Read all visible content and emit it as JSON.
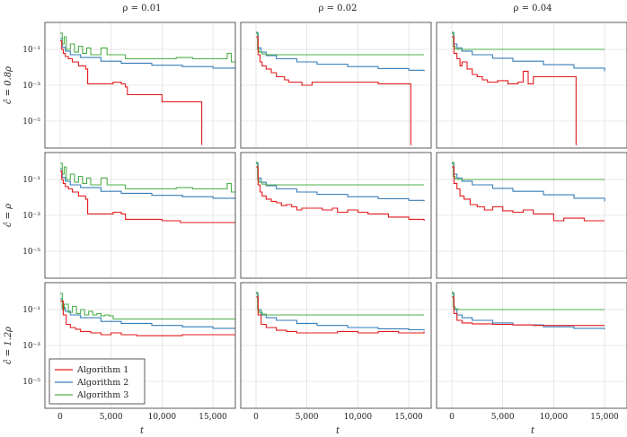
{
  "figure": {
    "column_titles": [
      "ρ = 0.01",
      "ρ = 0.02",
      "ρ = 0.04"
    ],
    "row_labels": [
      "ĉ = 0.8ρ",
      "ĉ = ρ",
      "ĉ = 1.2ρ"
    ],
    "xlabel": "t",
    "x_tick_labels": [
      "0",
      "5,000",
      "10,000",
      "15,000"
    ],
    "y_tick_labels": [
      "10⁻¹",
      "10⁻³",
      "10⁻⁵"
    ],
    "legend": {
      "placement": "lower-left of bottom-left panel",
      "entries": [
        "Algorithm 1",
        "Algorithm 2",
        "Algorithm 3"
      ]
    },
    "colors": {
      "Algorithm 1": "#e41a1c",
      "Algorithm 2": "#377eb8",
      "Algorithm 3": "#4daf4a"
    }
  },
  "chart_data": {
    "type": "line",
    "layout": "3x3 grid; columns = ρ values, rows = ĉ values; shared axes",
    "x_scale": "linear",
    "y_scale": "log",
    "xlim": [
      -1500,
      17200
    ],
    "ylim_log10": [
      -6.5,
      0.5
    ],
    "x_ticks": [
      0,
      5000,
      10000,
      15000
    ],
    "y_ticks": [
      0.1,
      0.001,
      1e-05
    ],
    "grid": true,
    "panels": [
      {
        "row": 0,
        "col": 0,
        "series": [
          {
            "name": "Algorithm 1",
            "x": [
              0,
              150,
              300,
              500,
              800,
              1200,
              1800,
              2500,
              2700,
              5000,
              5200,
              6000,
              6400,
              6600,
              9800,
              10000,
              13600,
              13800,
              13900,
              13950
            ],
            "y": [
              0.3,
              0.1,
              0.06,
              0.04,
              0.03,
              0.02,
              0.012,
              0.008,
              0.0012,
              0.0012,
              0.0015,
              0.0012,
              0.0008,
              0.0003,
              0.0003,
              0.00012,
              0.00012,
              0.00012,
              5e-07,
              5e-07
            ]
          },
          {
            "name": "Algorithm 2",
            "x": [
              0,
              200,
              500,
              1000,
              2000,
              4000,
              6000,
              9000,
              12000,
              15000,
              17500
            ],
            "y": [
              0.4,
              0.13,
              0.08,
              0.05,
              0.035,
              0.022,
              0.017,
              0.013,
              0.011,
              0.009,
              0.008
            ]
          },
          {
            "name": "Algorithm 3",
            "x": [
              0,
              200,
              400,
              600,
              1000,
              1400,
              1800,
              2200,
              2600,
              3000,
              3400,
              4000,
              4600,
              6000,
              6400,
              8000,
              11000,
              11400,
              12000,
              13000,
              14000,
              16000,
              16400,
              16800,
              17500
            ],
            "y": [
              0.8,
              0.2,
              0.5,
              0.1,
              0.2,
              0.07,
              0.15,
              0.06,
              0.12,
              0.05,
              0.05,
              0.12,
              0.05,
              0.05,
              0.03,
              0.03,
              0.03,
              0.035,
              0.035,
              0.03,
              0.03,
              0.03,
              0.06,
              0.02,
              0.02
            ]
          }
        ]
      },
      {
        "row": 0,
        "col": 1,
        "series": [
          {
            "name": "Algorithm 1",
            "x": [
              0,
              200,
              400,
              600,
              1000,
              1500,
              2000,
              2800,
              3200,
              4000,
              4500,
              5500,
              8500,
              9000,
              11000,
              12000,
              15000,
              15200,
              15300
            ],
            "y": [
              0.5,
              0.05,
              0.02,
              0.012,
              0.008,
              0.005,
              0.003,
              0.002,
              0.0015,
              0.0015,
              0.001,
              0.0015,
              0.0015,
              0.0015,
              0.0015,
              0.0012,
              0.0012,
              5e-07,
              5e-07
            ]
          },
          {
            "name": "Algorithm 2",
            "x": [
              0,
              200,
              500,
              1000,
              2000,
              4000,
              6000,
              9000,
              12000,
              15000,
              16500
            ],
            "y": [
              0.8,
              0.12,
              0.07,
              0.045,
              0.03,
              0.02,
              0.015,
              0.011,
              0.0085,
              0.0068,
              0.006
            ]
          },
          {
            "name": "Algorithm 3",
            "x": [
              0,
              150,
              300,
              600,
              1000,
              2000,
              16500
            ],
            "y": [
              0.9,
              0.1,
              0.07,
              0.055,
              0.05,
              0.05,
              0.05
            ]
          }
        ]
      },
      {
        "row": 0,
        "col": 2,
        "series": [
          {
            "name": "Algorithm 1",
            "x": [
              0,
              200,
              500,
              800,
              1000,
              1500,
              2000,
              2500,
              3000,
              3500,
              4500,
              5500,
              6500,
              7000,
              7500,
              8000,
              10000,
              12000,
              12200,
              12300
            ],
            "y": [
              0.5,
              0.06,
              0.03,
              0.012,
              0.02,
              0.008,
              0.004,
              0.003,
              0.002,
              0.0015,
              0.0018,
              0.0012,
              0.0015,
              0.006,
              0.0012,
              0.003,
              0.003,
              0.003,
              5e-07,
              5e-07
            ]
          },
          {
            "name": "Algorithm 2",
            "x": [
              0,
              200,
              500,
              1000,
              2000,
              4000,
              6000,
              9000,
              12000,
              15000
            ],
            "y": [
              0.8,
              0.2,
              0.12,
              0.08,
              0.05,
              0.032,
              0.022,
              0.014,
              0.009,
              0.006
            ]
          },
          {
            "name": "Algorithm 3",
            "x": [
              0,
              150,
              300,
              600,
              1000,
              8000,
              15000
            ],
            "y": [
              0.9,
              0.15,
              0.11,
              0.1,
              0.1,
              0.1,
              0.1
            ]
          }
        ]
      },
      {
        "row": 1,
        "col": 0,
        "series": [
          {
            "name": "Algorithm 1",
            "x": [
              0,
              150,
              300,
              500,
              800,
              1200,
              1800,
              2500,
              2700,
              5000,
              5200,
              6000,
              6400,
              9800,
              10000,
              11600,
              11800,
              17500
            ],
            "y": [
              0.3,
              0.1,
              0.06,
              0.04,
              0.03,
              0.02,
              0.012,
              0.008,
              0.0012,
              0.0012,
              0.0015,
              0.0012,
              0.0006,
              0.0006,
              0.0005,
              0.0005,
              0.0004,
              0.0004
            ]
          },
          {
            "name": "Algorithm 2",
            "x": [
              0,
              200,
              500,
              1000,
              2000,
              4000,
              6000,
              9000,
              12000,
              15000,
              17500
            ],
            "y": [
              0.4,
              0.13,
              0.08,
              0.05,
              0.035,
              0.022,
              0.017,
              0.013,
              0.011,
              0.009,
              0.008
            ]
          },
          {
            "name": "Algorithm 3",
            "x": [
              0,
              200,
              400,
              600,
              1000,
              1400,
              1800,
              2200,
              2600,
              3000,
              3400,
              4000,
              4600,
              6000,
              6400,
              8000,
              11000,
              11400,
              12000,
              13000,
              14000,
              16000,
              16400,
              16800,
              17500
            ],
            "y": [
              0.8,
              0.2,
              0.5,
              0.1,
              0.2,
              0.07,
              0.15,
              0.06,
              0.12,
              0.05,
              0.05,
              0.12,
              0.05,
              0.05,
              0.03,
              0.03,
              0.03,
              0.035,
              0.035,
              0.03,
              0.03,
              0.03,
              0.06,
              0.02,
              0.02
            ]
          }
        ]
      },
      {
        "row": 1,
        "col": 1,
        "series": [
          {
            "name": "Algorithm 1",
            "x": [
              0,
              200,
              400,
              600,
              1000,
              1500,
              2000,
              2500,
              3000,
              3500,
              4000,
              4500,
              5500,
              6500,
              7500,
              8000,
              9000,
              10000,
              11000,
              12000,
              13000,
              14000,
              15000,
              16500
            ],
            "y": [
              0.5,
              0.05,
              0.02,
              0.012,
              0.008,
              0.006,
              0.005,
              0.0035,
              0.004,
              0.003,
              0.002,
              0.0025,
              0.0025,
              0.002,
              0.0025,
              0.0015,
              0.002,
              0.0015,
              0.0012,
              0.0012,
              0.0008,
              0.0008,
              0.0006,
              0.0005
            ]
          },
          {
            "name": "Algorithm 2",
            "x": [
              0,
              200,
              500,
              1000,
              2000,
              4000,
              6000,
              9000,
              12000,
              15000,
              16500
            ],
            "y": [
              0.8,
              0.12,
              0.07,
              0.045,
              0.03,
              0.02,
              0.015,
              0.011,
              0.0085,
              0.0068,
              0.006
            ]
          },
          {
            "name": "Algorithm 3",
            "x": [
              0,
              150,
              300,
              600,
              1000,
              2000,
              16500
            ],
            "y": [
              0.9,
              0.1,
              0.07,
              0.055,
              0.05,
              0.05,
              0.05
            ]
          }
        ]
      },
      {
        "row": 1,
        "col": 2,
        "series": [
          {
            "name": "Algorithm 1",
            "x": [
              0,
              200,
              500,
              800,
              1200,
              1800,
              2500,
              3200,
              4000,
              5000,
              6000,
              7000,
              8000,
              9000,
              10000,
              11000,
              12000,
              13000,
              15000
            ],
            "y": [
              0.5,
              0.06,
              0.03,
              0.012,
              0.008,
              0.004,
              0.003,
              0.002,
              0.003,
              0.0018,
              0.0015,
              0.002,
              0.0012,
              0.0012,
              0.0005,
              0.0007,
              0.0007,
              0.0005,
              0.0005
            ]
          },
          {
            "name": "Algorithm 2",
            "x": [
              0,
              200,
              500,
              1000,
              2000,
              4000,
              6000,
              9000,
              12000,
              15000
            ],
            "y": [
              0.8,
              0.2,
              0.12,
              0.08,
              0.05,
              0.032,
              0.022,
              0.014,
              0.009,
              0.006
            ]
          },
          {
            "name": "Algorithm 3",
            "x": [
              0,
              150,
              300,
              600,
              1000,
              8000,
              15000
            ],
            "y": [
              0.9,
              0.15,
              0.11,
              0.1,
              0.1,
              0.1,
              0.1
            ]
          }
        ]
      },
      {
        "row": 2,
        "col": 0,
        "series": [
          {
            "name": "Algorithm 1",
            "x": [
              0,
              300,
              600,
              1000,
              1500,
              2000,
              3000,
              4000,
              5000,
              6000,
              7000,
              7500,
              9000,
              12000,
              15000,
              17500
            ],
            "y": [
              0.3,
              0.05,
              0.015,
              0.01,
              0.008,
              0.006,
              0.005,
              0.004,
              0.005,
              0.004,
              0.004,
              0.0035,
              0.0035,
              0.004,
              0.004,
              0.0038
            ]
          },
          {
            "name": "Algorithm 2",
            "x": [
              0,
              200,
              500,
              1000,
              2000,
              4000,
              6000,
              9000,
              12000,
              15000,
              17500
            ],
            "y": [
              0.4,
              0.13,
              0.08,
              0.05,
              0.035,
              0.022,
              0.017,
              0.013,
              0.011,
              0.009,
              0.008
            ]
          },
          {
            "name": "Algorithm 3",
            "x": [
              0,
              200,
              400,
              800,
              1200,
              1600,
              2000,
              2400,
              2800,
              3200,
              3600,
              4000,
              4400,
              4800,
              5200,
              17500
            ],
            "y": [
              0.8,
              0.1,
              0.2,
              0.07,
              0.15,
              0.06,
              0.1,
              0.05,
              0.08,
              0.05,
              0.06,
              0.045,
              0.05,
              0.045,
              0.03,
              0.03
            ]
          }
        ]
      },
      {
        "row": 2,
        "col": 1,
        "series": [
          {
            "name": "Algorithm 1",
            "x": [
              0,
              200,
              500,
              1000,
              2000,
              3000,
              4000,
              6000,
              8000,
              10000,
              12000,
              14000,
              16500
            ],
            "y": [
              0.5,
              0.05,
              0.015,
              0.01,
              0.007,
              0.006,
              0.005,
              0.005,
              0.006,
              0.005,
              0.006,
              0.005,
              0.006
            ]
          },
          {
            "name": "Algorithm 2",
            "x": [
              0,
              200,
              500,
              1000,
              2000,
              4000,
              6000,
              9000,
              12000,
              15000,
              16500
            ],
            "y": [
              0.8,
              0.1,
              0.05,
              0.035,
              0.025,
              0.017,
              0.013,
              0.01,
              0.0085,
              0.0075,
              0.007
            ]
          },
          {
            "name": "Algorithm 3",
            "x": [
              0,
              150,
              300,
              600,
              1000,
              2000,
              16500
            ],
            "y": [
              0.9,
              0.1,
              0.07,
              0.055,
              0.05,
              0.05,
              0.05
            ]
          }
        ]
      },
      {
        "row": 2,
        "col": 2,
        "series": [
          {
            "name": "Algorithm 1",
            "x": [
              0,
              200,
              500,
              1000,
              2000,
              4000,
              6000,
              8000,
              10000,
              12000,
              15000
            ],
            "y": [
              0.5,
              0.06,
              0.025,
              0.018,
              0.016,
              0.015,
              0.014,
              0.013,
              0.013,
              0.013,
              0.013
            ]
          },
          {
            "name": "Algorithm 2",
            "x": [
              0,
              200,
              500,
              1000,
              2000,
              4000,
              6000,
              9000,
              12000,
              15000
            ],
            "y": [
              0.8,
              0.1,
              0.05,
              0.035,
              0.025,
              0.018,
              0.014,
              0.011,
              0.009,
              0.008
            ]
          },
          {
            "name": "Algorithm 3",
            "x": [
              0,
              150,
              300,
              600,
              1000,
              8000,
              15000
            ],
            "y": [
              0.9,
              0.15,
              0.11,
              0.1,
              0.1,
              0.1,
              0.1
            ]
          }
        ]
      }
    ]
  }
}
